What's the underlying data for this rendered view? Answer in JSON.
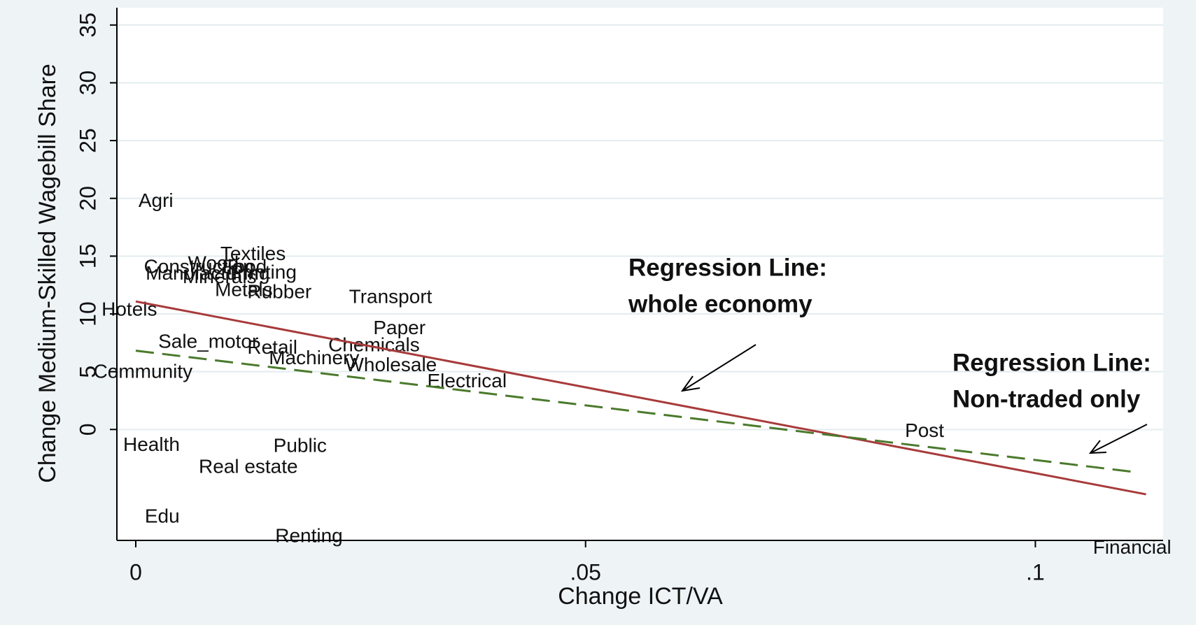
{
  "chart_data": {
    "type": "scatter",
    "x_label": "Change ICT/VA",
    "y_label": "Change Medium-Skilled Wagebill Share",
    "xlim": [
      -0.0021,
      0.1142
    ],
    "ylim": [
      -9.6,
      36.5
    ],
    "xticks": [
      0,
      {
        "value": 0.05,
        "label": ".05"
      },
      {
        "value": 0.1,
        "label": ".1"
      }
    ],
    "yticks": [
      0,
      5,
      10,
      15,
      20,
      25,
      30,
      35
    ],
    "grid": true,
    "labels": [
      "Agri",
      "Textiles",
      "Construction",
      "Wood",
      "Food",
      "Manufacturing",
      "Minerals",
      "Printing",
      "Metals",
      "Rubber",
      "Transport",
      "Hotels",
      "Paper",
      "Sale_motor",
      "Retail",
      "Chemicals",
      "Machinery",
      "Wholesale",
      "Community",
      "Electrical",
      "Post",
      "Health",
      "Public",
      "Real estate",
      "Edu",
      "Renting",
      "Financial"
    ],
    "x": [
      0.0003,
      0.0094,
      0.0009,
      0.0058,
      0.0096,
      0.0011,
      0.0052,
      0.0105,
      0.0088,
      0.0124,
      0.0237,
      -0.0038,
      0.0264,
      0.0025,
      0.0124,
      0.0214,
      0.0148,
      0.0233,
      -0.0047,
      0.0324,
      0.0855,
      -0.0014,
      0.0153,
      0.007,
      0.001,
      0.0155,
      0.1064
    ],
    "y": [
      19.7,
      15.1,
      14.0,
      14.3,
      14.0,
      13.4,
      13.1,
      13.5,
      12.0,
      11.8,
      11.4,
      10.3,
      8.7,
      7.5,
      7.0,
      7.2,
      6.1,
      5.5,
      4.9,
      4.1,
      -0.2,
      -1.4,
      -1.5,
      -3.3,
      -7.6,
      -9.3,
      -10.3
    ],
    "fit_lines": [
      {
        "color": "#a83a3a",
        "dashed": false,
        "x": [
          0,
          0.1123
        ],
        "y": [
          11.08,
          -5.61
        ]
      },
      {
        "color": "#4a7a2c",
        "dashed": true,
        "x": [
          0,
          0.1114
        ],
        "y": [
          6.82,
          -3.72
        ]
      }
    ],
    "annotations": [
      [
        "Regression Line:",
        "whole economy"
      ],
      [
        "Regression Line:",
        "Non-traded only"
      ]
    ]
  }
}
